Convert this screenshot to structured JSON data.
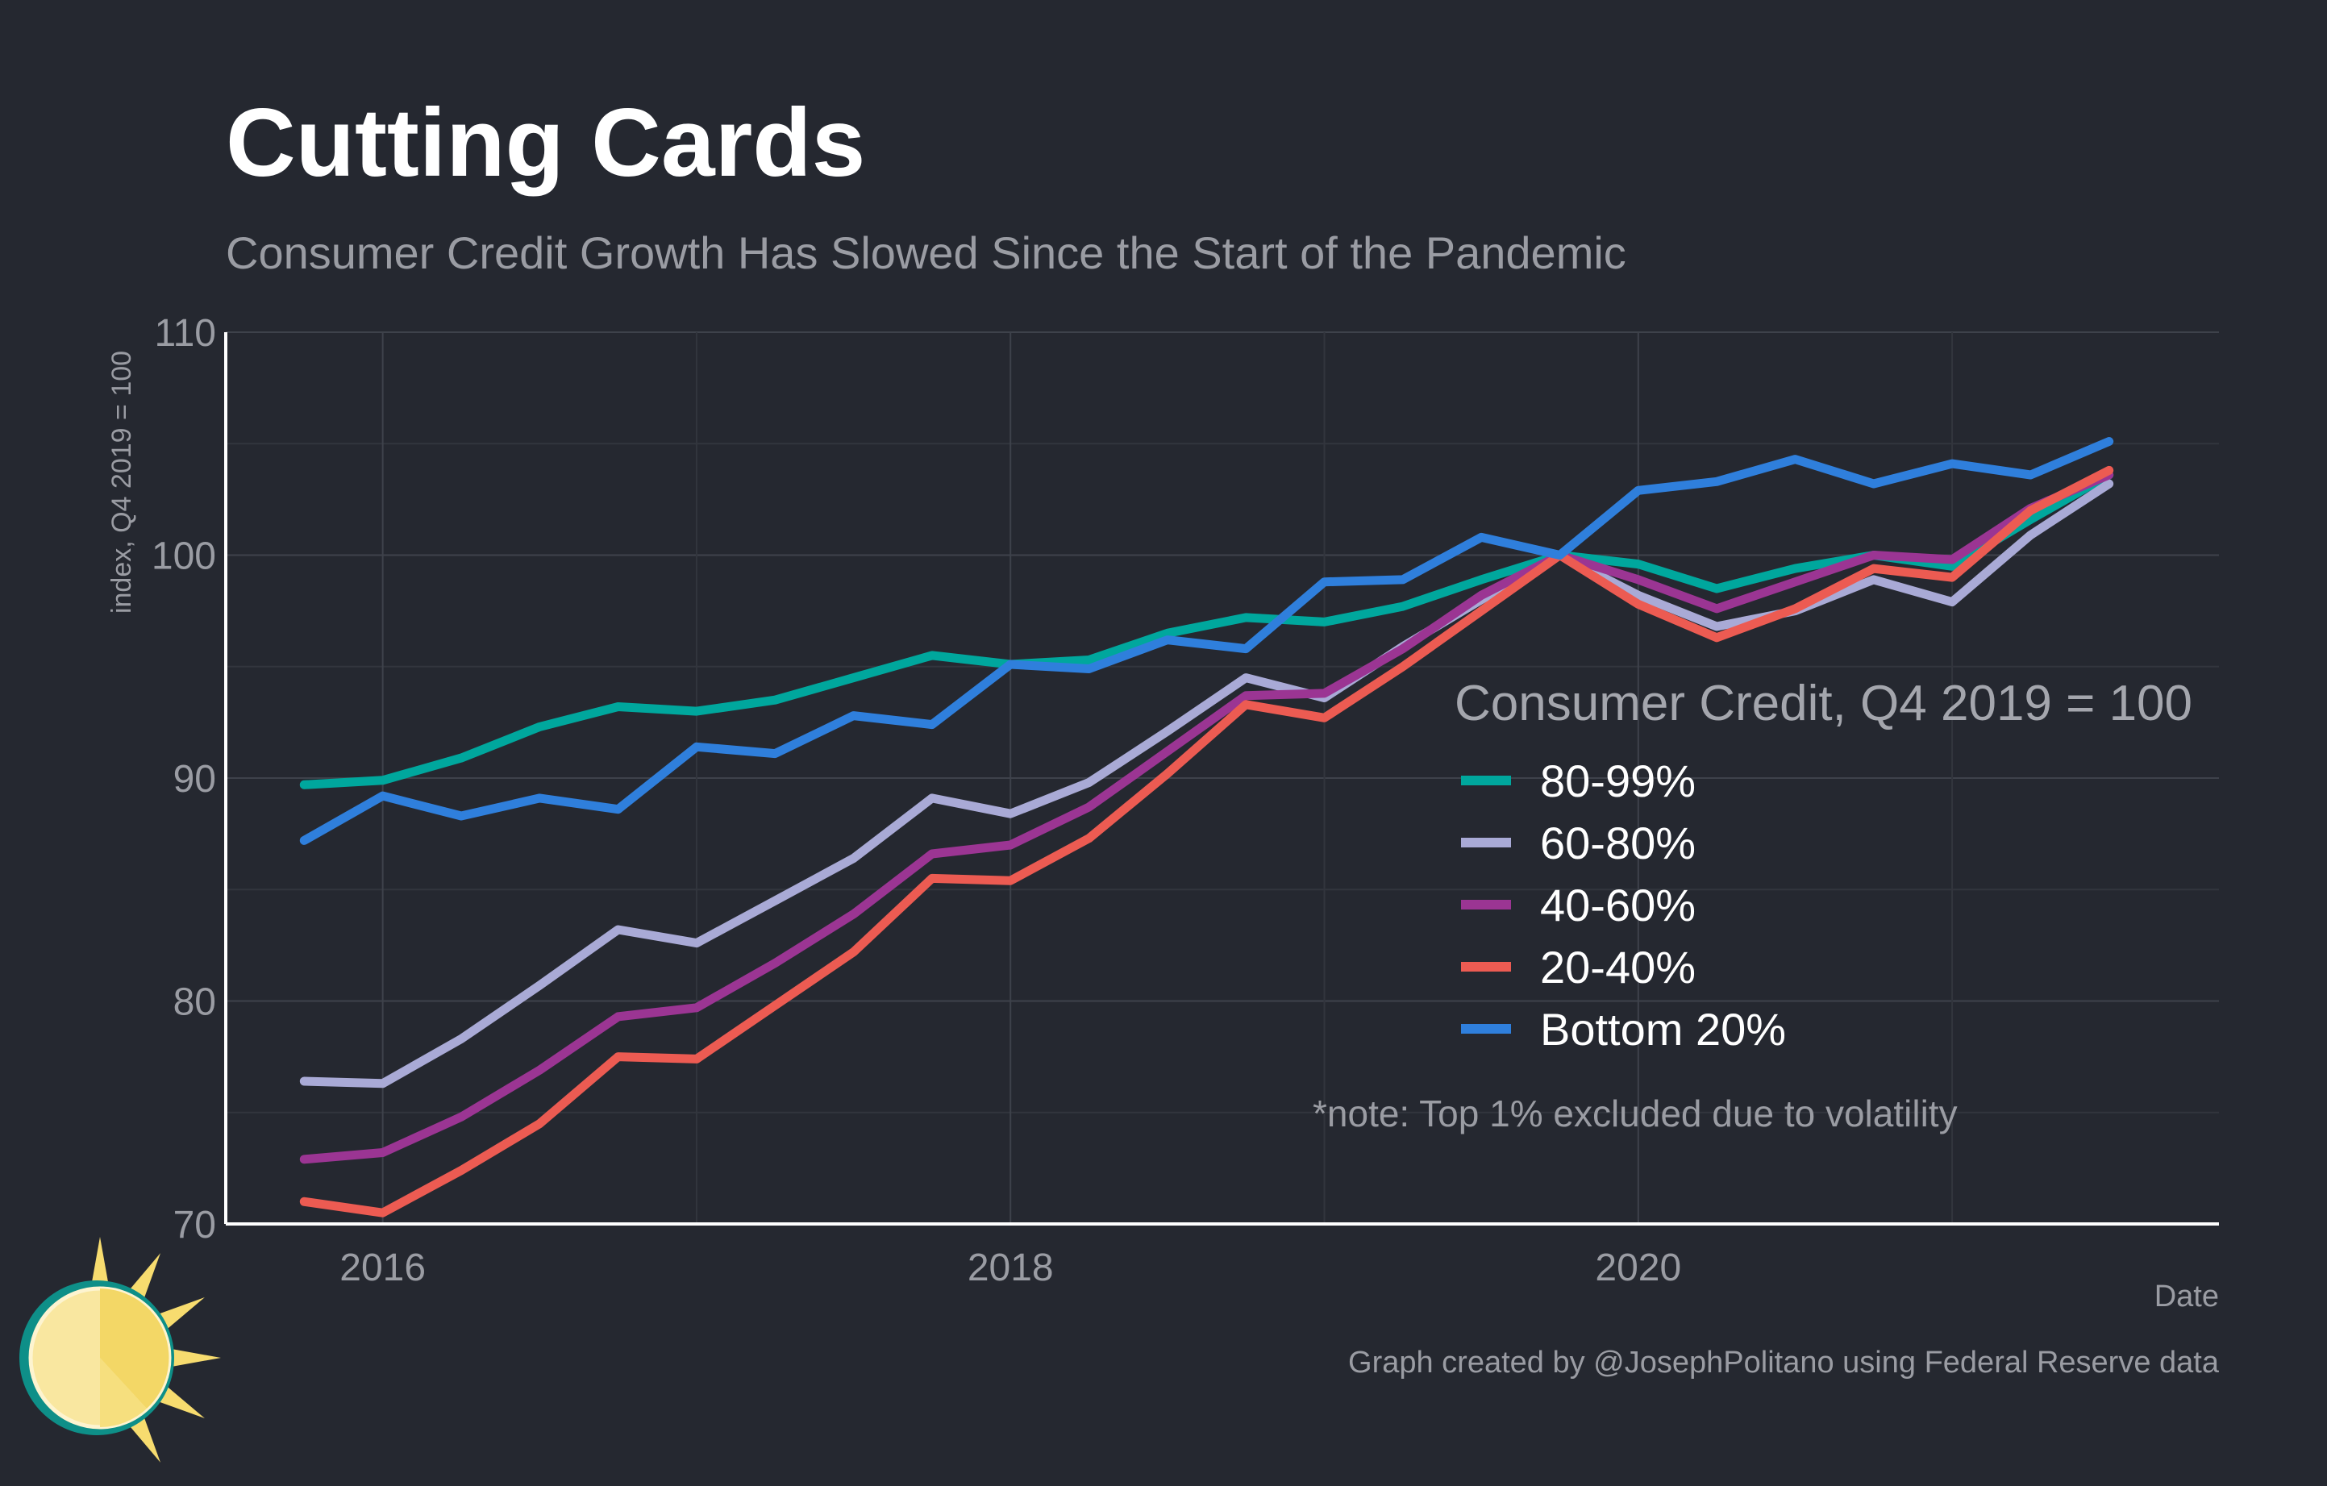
{
  "header": {
    "title": "Cutting Cards",
    "subtitle": "Consumer Credit Growth Has Slowed Since the Start of the Pandemic"
  },
  "footer": {
    "credit": "Graph created by @JosephPolitano using Federal Reserve data"
  },
  "logo": {
    "icon": "sun-logo-icon"
  },
  "chart_data": {
    "type": "line",
    "title": "Cutting Cards",
    "subtitle": "Consumer Credit Growth Has Slowed Since the Start of the Pandemic",
    "xlabel": "Date",
    "ylabel": "index, Q4 2019 = 100",
    "ylim": [
      70,
      110
    ],
    "xlim": [
      2015.5,
      2021.85
    ],
    "yticks": [
      70,
      80,
      90,
      100,
      110
    ],
    "xticks": [
      2016,
      2018,
      2020
    ],
    "x_tick_labels": [
      "2016",
      "2018",
      "2020"
    ],
    "grid": true,
    "legend": {
      "title": "Consumer Credit, Q4 2019 = 100",
      "position": "right"
    },
    "annotation": "*note: Top 1% excluded due to volatility",
    "x": [
      "Q4 2015",
      "Q1 2016",
      "Q2 2016",
      "Q3 2016",
      "Q4 2016",
      "Q1 2017",
      "Q2 2017",
      "Q3 2017",
      "Q4 2017",
      "Q1 2018",
      "Q2 2018",
      "Q3 2018",
      "Q4 2018",
      "Q1 2019",
      "Q2 2019",
      "Q3 2019",
      "Q4 2019",
      "Q1 2020",
      "Q2 2020",
      "Q3 2020",
      "Q4 2020",
      "Q1 2021",
      "Q2 2021",
      "Q3 2021"
    ],
    "series": [
      {
        "name": "80-99%",
        "color": "#00a79d",
        "values": [
          89.7,
          89.9,
          90.9,
          92.3,
          93.2,
          93.0,
          93.5,
          94.5,
          95.5,
          95.1,
          95.3,
          96.5,
          97.2,
          97.0,
          97.7,
          98.9,
          100.0,
          99.6,
          98.5,
          99.4,
          100.0,
          99.5,
          101.6,
          103.6
        ]
      },
      {
        "name": "60-80%",
        "color": "#a9aad6",
        "values": [
          76.4,
          76.3,
          78.3,
          80.7,
          83.2,
          82.6,
          84.5,
          86.4,
          89.1,
          88.4,
          89.8,
          92.1,
          94.5,
          93.6,
          95.9,
          98.0,
          100.0,
          98.2,
          96.8,
          97.5,
          98.9,
          97.9,
          100.9,
          103.2
        ]
      },
      {
        "name": "40-60%",
        "color": "#9b3593",
        "values": [
          72.9,
          73.2,
          74.8,
          76.9,
          79.3,
          79.7,
          81.7,
          83.9,
          86.6,
          87.0,
          88.7,
          91.2,
          93.7,
          93.8,
          95.8,
          98.2,
          100.0,
          98.9,
          97.6,
          98.8,
          100.0,
          99.8,
          102.1,
          103.6
        ]
      },
      {
        "name": "20-40%",
        "color": "#ec5b52",
        "values": [
          71.0,
          70.5,
          72.4,
          74.5,
          77.5,
          77.4,
          79.8,
          82.2,
          85.5,
          85.4,
          87.3,
          90.2,
          93.3,
          92.7,
          95.0,
          97.5,
          100.0,
          97.8,
          96.3,
          97.6,
          99.4,
          99.0,
          102.0,
          103.8
        ]
      },
      {
        "name": "Bottom 20%",
        "color": "#2f7fdc",
        "values": [
          87.2,
          89.2,
          88.3,
          89.1,
          88.6,
          91.4,
          91.1,
          92.8,
          92.4,
          95.1,
          94.9,
          96.2,
          95.8,
          98.8,
          98.9,
          100.8,
          100.0,
          102.9,
          103.3,
          104.3,
          103.2,
          104.1,
          103.6,
          105.1
        ]
      }
    ]
  }
}
